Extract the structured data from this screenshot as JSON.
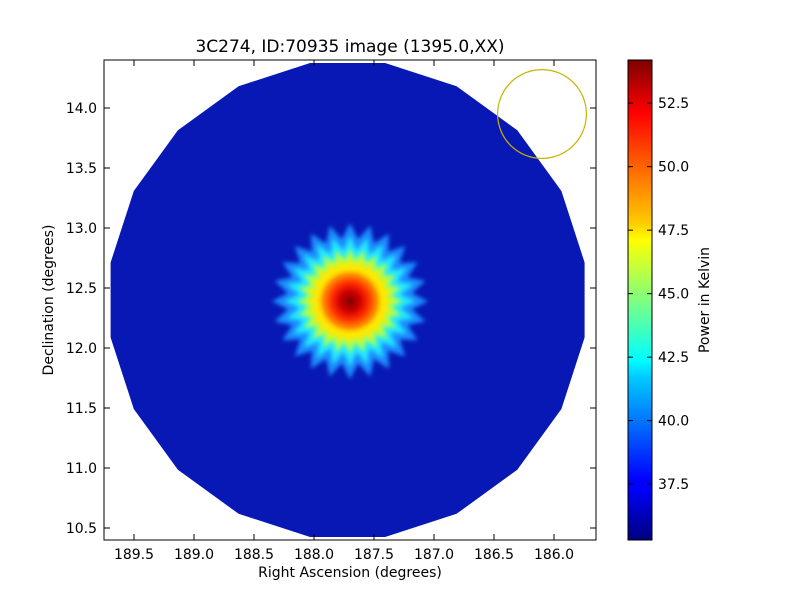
{
  "chart_data": {
    "type": "heatmap",
    "title": "3C274, ID:70935 image (1395.0,XX)",
    "xlabel": "Right Ascension (degrees)",
    "ylabel": "Declination (degrees)",
    "xlim": [
      189.75,
      185.65
    ],
    "ylim": [
      10.4,
      14.4
    ],
    "x_ticks": [
      189.5,
      189.0,
      188.5,
      188.0,
      187.5,
      187.0,
      186.5,
      186.0
    ],
    "x_tick_labels": [
      "189.5",
      "189.0",
      "188.5",
      "188.0",
      "187.5",
      "187.0",
      "186.5",
      "186.0"
    ],
    "y_ticks": [
      10.5,
      11.0,
      11.5,
      12.0,
      12.5,
      13.0,
      13.5,
      14.0
    ],
    "y_tick_labels": [
      "10.5",
      "11.0",
      "11.5",
      "12.0",
      "12.5",
      "13.0",
      "13.5",
      "14.0"
    ],
    "field": {
      "center_ra": 187.72,
      "center_dec": 12.4,
      "radius_deg": 2.0,
      "sides": 20,
      "background_value": 35.8
    },
    "source": {
      "ra": 187.7,
      "dec": 12.39,
      "peak_value": 54.0,
      "core_radius_deg": 0.28,
      "halo_radius_deg": 0.65,
      "halo_spikes": 24
    },
    "beam_circle": {
      "ra": 186.1,
      "dec": 13.95,
      "radius_deg": 0.37,
      "color": "#c8b400"
    },
    "colorbar": {
      "label": "Power in Kelvin",
      "min": 35.3,
      "max": 54.2,
      "ticks": [
        37.5,
        40.0,
        42.5,
        45.0,
        47.5,
        50.0,
        52.5
      ],
      "tick_labels": [
        "37.5",
        "40.0",
        "42.5",
        "45.0",
        "47.5",
        "50.0",
        "52.5"
      ],
      "colormap": "jet"
    },
    "grid": false
  }
}
